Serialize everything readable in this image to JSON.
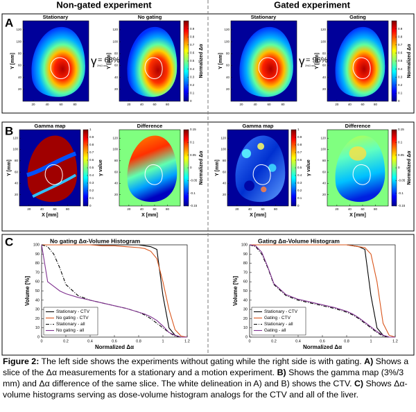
{
  "headers": [
    "Non-gated experiment",
    "Gated experiment"
  ],
  "image_axes": {
    "xlim": [
      5,
      100
    ],
    "ylim": [
      0,
      135
    ],
    "xticks": [
      20,
      40,
      60,
      80
    ],
    "yticks": [
      20,
      40,
      60,
      80,
      100,
      120
    ],
    "x_label": "X [mm]",
    "y_label": "Y [mm]"
  },
  "colorbars": {
    "dose": {
      "label": "Normalized Δα",
      "lim": [
        0,
        1
      ],
      "ticks": [
        0,
        0.1,
        0.2,
        0.3,
        0.4,
        0.5,
        0.6,
        0.7,
        0.8,
        0.9
      ]
    },
    "gamma": {
      "label": "γ value",
      "lim": [
        0,
        1
      ],
      "ticks": [
        0,
        0.1,
        0.2,
        0.3,
        0.4,
        0.5,
        0.6,
        0.7,
        0.8,
        0.9,
        1
      ]
    },
    "diff": {
      "label": "Normalized Δα",
      "lim": [
        -0.15,
        0.15
      ],
      "ticks": [
        -0.15,
        -0.1,
        -0.05,
        0,
        0.05,
        0.1,
        0.15
      ]
    }
  },
  "panel_a": {
    "letter": "A",
    "sides": [
      {
        "titles": [
          "Stationary",
          "No gating"
        ],
        "gamma": "γ",
        "gamma_subscript": "3%/3 mm",
        "gamma_value": "= 68%"
      },
      {
        "titles": [
          "Stationary",
          "Gating"
        ],
        "gamma": "γ",
        "gamma_subscript": "3%/3 mm",
        "gamma_value": "= 96%"
      }
    ]
  },
  "panel_b": {
    "letter": "B",
    "titles": [
      "Gamma map",
      "Difference"
    ]
  },
  "panel_c": {
    "letter": "C"
  },
  "chart_data": [
    {
      "type": "line",
      "title": "No gating Δα-Volume Histogram",
      "x_label": "Normalized Δα",
      "y_label": "Volume [%]",
      "xlim": [
        0,
        1.2
      ],
      "ylim": [
        0,
        100
      ],
      "xticks": [
        0,
        0.2,
        0.4,
        0.6,
        0.8,
        1,
        1.2
      ],
      "yticks": [
        0,
        10,
        20,
        30,
        40,
        50,
        60,
        70,
        80,
        90,
        100
      ],
      "legend": "lower left",
      "x": [
        0,
        0.05,
        0.1,
        0.15,
        0.2,
        0.3,
        0.4,
        0.5,
        0.6,
        0.7,
        0.8,
        0.85,
        0.9,
        0.95,
        1.0,
        1.05,
        1.1,
        1.15,
        1.2
      ],
      "series": [
        {
          "name": "Stationary - CTV",
          "color": "#000000",
          "style": "solid",
          "values": [
            100,
            100,
            100,
            100,
            100,
            100,
            100,
            100,
            100,
            100,
            100,
            99,
            98,
            95,
            45,
            10,
            2,
            0,
            0
          ]
        },
        {
          "name": "No gating - CTV",
          "color": "#d9541a",
          "style": "solid",
          "values": [
            100,
            100,
            100,
            100,
            100,
            100,
            100,
            99,
            99,
            98,
            97,
            96,
            93,
            85,
            60,
            30,
            8,
            1,
            0
          ]
        },
        {
          "name": "Stationary - all",
          "color": "#000000",
          "style": "dashdot",
          "values": [
            100,
            98,
            90,
            75,
            57,
            45,
            40,
            37,
            34,
            31,
            27,
            24,
            20,
            15,
            10,
            5,
            1,
            0,
            0
          ]
        },
        {
          "name": "No gating - all",
          "color": "#7e2f8e",
          "style": "solid",
          "values": [
            100,
            60,
            55,
            50,
            47,
            43,
            40,
            37,
            34,
            31,
            27,
            25,
            22,
            18,
            12,
            5,
            2,
            0,
            0
          ]
        }
      ]
    },
    {
      "type": "line",
      "title": "Gating Δα-Volume Histogram",
      "x_label": "Normalized Δα",
      "y_label": "Volume [%]",
      "xlim": [
        0,
        1.2
      ],
      "ylim": [
        0,
        100
      ],
      "xticks": [
        0,
        0.2,
        0.4,
        0.6,
        0.8,
        1,
        1.2
      ],
      "yticks": [
        0,
        10,
        20,
        30,
        40,
        50,
        60,
        70,
        80,
        90,
        100
      ],
      "legend": "lower left",
      "x": [
        0,
        0.05,
        0.1,
        0.15,
        0.2,
        0.3,
        0.4,
        0.5,
        0.6,
        0.7,
        0.8,
        0.85,
        0.9,
        0.95,
        1.0,
        1.05,
        1.1,
        1.15,
        1.2
      ],
      "series": [
        {
          "name": "Stationary - CTV",
          "color": "#000000",
          "style": "solid",
          "values": [
            100,
            100,
            100,
            100,
            100,
            100,
            100,
            100,
            100,
            100,
            100,
            99,
            98,
            95,
            45,
            10,
            2,
            0,
            0
          ]
        },
        {
          "name": "Gating - CTV",
          "color": "#d9541a",
          "style": "solid",
          "values": [
            100,
            100,
            100,
            100,
            100,
            100,
            100,
            100,
            100,
            100,
            100,
            99,
            98,
            97,
            90,
            60,
            15,
            2,
            0
          ]
        },
        {
          "name": "Stationary - all",
          "color": "#000000",
          "style": "dashdot",
          "values": [
            100,
            98,
            90,
            75,
            57,
            45,
            40,
            37,
            34,
            31,
            27,
            24,
            20,
            15,
            10,
            5,
            1,
            0,
            0
          ]
        },
        {
          "name": "Gating - all",
          "color": "#7e2f8e",
          "style": "solid",
          "values": [
            100,
            99,
            92,
            76,
            58,
            46,
            41,
            38,
            35,
            32,
            28,
            25,
            21,
            16,
            11,
            6,
            2,
            0,
            0
          ]
        }
      ]
    }
  ],
  "caption": [
    {
      "text": "Figure 2:",
      "bold": true
    },
    {
      "text": " The left side shows the experiments without gating while the right side is with gating. ",
      "bold": false
    },
    {
      "text": "A)",
      "bold": true
    },
    {
      "text": " Shows a slice of the Δα measurements for a stationary and a motion experiment. ",
      "bold": false
    },
    {
      "text": "B)",
      "bold": true
    },
    {
      "text": " Shows the gamma map (3%/3 mm) and Δα difference of the same slice. The white delineation in A) and B) shows the CTV. ",
      "bold": false
    },
    {
      "text": "C)",
      "bold": true
    },
    {
      "text": " Shows Δα-volume histograms serving as dose-volume histogram analogs for the CTV and all of the liver.",
      "bold": false
    }
  ]
}
